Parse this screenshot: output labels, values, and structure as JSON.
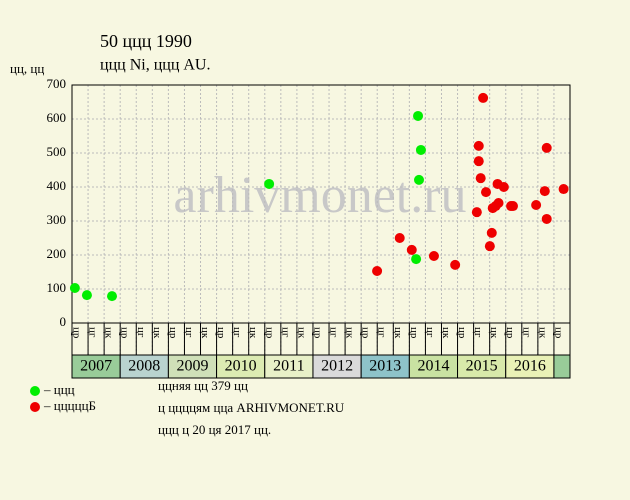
{
  "chart_data": {
    "type": "scatter",
    "title": "50 ццц 1990",
    "subtitle": "ццц Ni, ццц AU.",
    "y_label": "цц, цц",
    "watermark": "arhivmonet.ru",
    "ylim": [
      0,
      700
    ],
    "yticks": [
      0,
      100,
      200,
      300,
      400,
      500,
      600,
      700
    ],
    "xlim": [
      2007,
      2017.333
    ],
    "grid": true,
    "periods": [
      "цр",
      "цг",
      "цк",
      "цр",
      "цг",
      "цк",
      "цр",
      "цг",
      "цк",
      "цр",
      "цг",
      "цк",
      "цр",
      "цг",
      "цк",
      "цр",
      "цг",
      "цк",
      "цр",
      "цг",
      "цк",
      "цр",
      "цг",
      "цк",
      "цр",
      "цг",
      "цк",
      "цр",
      "цг",
      "цк",
      "цр"
    ],
    "years": [
      "2007",
      "2008",
      "2009",
      "2010",
      "2011",
      "2012",
      "2013",
      "2014",
      "2015",
      "2016"
    ],
    "year_colors": [
      "#99cc99",
      "#b9d3cf",
      "#cfe0b8",
      "#dcebb2",
      "#e8f0c8",
      "#dadada",
      "#8ec3c9",
      "#c9e2a2",
      "#d8e9aa",
      "#e9f1b6",
      "#99cc99"
    ],
    "series": [
      {
        "name": "– ццц",
        "color": "#00ee00",
        "x": [
          2007.06,
          2007.31,
          2007.83,
          2011.09,
          2014.18,
          2014.24,
          2014.2,
          2014.14
        ],
        "values": [
          103,
          82,
          79,
          409,
          609,
          509,
          421,
          188
        ]
      },
      {
        "name": "– цццццБ",
        "color": "#ee0000",
        "x": [
          2013.33,
          2013.8,
          2014.05,
          2014.51,
          2014.95,
          2015.4,
          2015.44,
          2015.44,
          2015.48,
          2015.53,
          2015.59,
          2015.67,
          2015.71,
          2015.73,
          2015.79,
          2015.83,
          2015.85,
          2015.96,
          2016.11,
          2016.15,
          2016.63,
          2016.81,
          2016.85,
          2016.85,
          2017.2
        ],
        "values": [
          153,
          250,
          215,
          197,
          171,
          326,
          521,
          476,
          426,
          662,
          385,
          226,
          265,
          338,
          344,
          409,
          353,
          400,
          344,
          344,
          347,
          388,
          515,
          306,
          394
        ]
      }
    ],
    "notes": [
      "ццняя цц 379 цц",
      "ц ццццям цца ARHIVMONET.RU",
      "ццц ц 20 ця 2017 цц."
    ]
  }
}
